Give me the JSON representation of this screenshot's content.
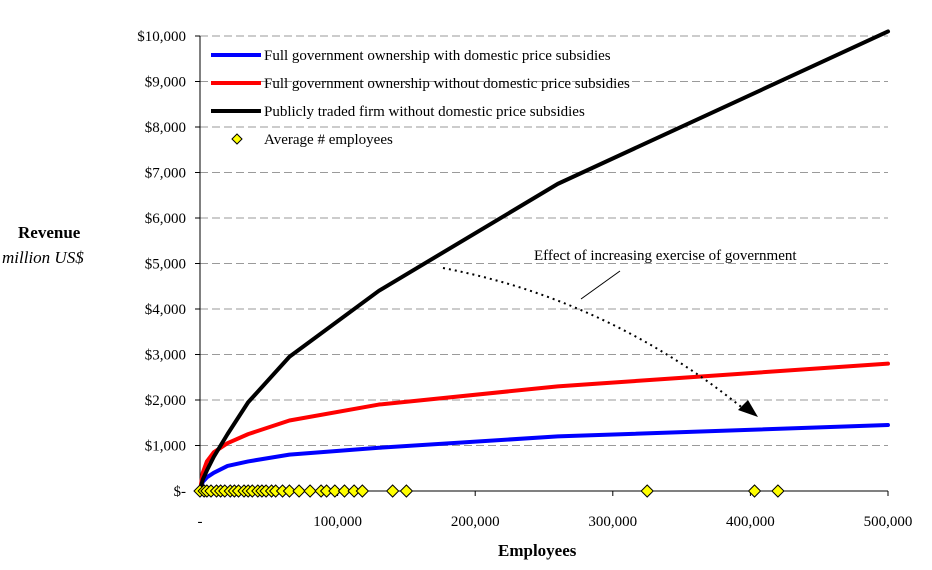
{
  "chart_data": {
    "type": "line",
    "title": "",
    "ylabel": "Revenue",
    "ylabel_unit": "million US$",
    "xlabel": "Employees",
    "xlim": [
      0,
      500000
    ],
    "ylim": [
      0,
      10000
    ],
    "grid": true,
    "legend_position": "top-left",
    "x_ticks": [
      "-",
      "100,000",
      "200,000",
      "300,000",
      "400,000",
      "500,000"
    ],
    "y_ticks": [
      "$-",
      "$1,000",
      "$2,000",
      "$3,000",
      "$4,000",
      "$5,000",
      "$6,000",
      "$7,000",
      "$8,000",
      "$9,000",
      "$10,000"
    ],
    "series": [
      {
        "name": "Full government ownership with domestic price subsidies",
        "color": "#0000ff",
        "x": [
          0,
          2000,
          5000,
          10000,
          20000,
          35000,
          65000,
          130000,
          260000,
          500000
        ],
        "y": [
          0,
          200,
          300,
          400,
          550,
          650,
          800,
          950,
          1200,
          1450
        ]
      },
      {
        "name": "Full government ownership without domestic price subsidies",
        "color": "#ff0000",
        "x": [
          0,
          2000,
          5000,
          10000,
          20000,
          35000,
          65000,
          130000,
          260000,
          500000
        ],
        "y": [
          0,
          400,
          650,
          850,
          1050,
          1250,
          1550,
          1900,
          2300,
          2800
        ]
      },
      {
        "name": "Publicly traded firm without domestic price subsidies",
        "color": "#000000",
        "x": [
          0,
          2000,
          5000,
          10000,
          20000,
          35000,
          65000,
          130000,
          260000,
          500000
        ],
        "y": [
          0,
          250,
          450,
          750,
          1250,
          1950,
          2950,
          4400,
          6750,
          10100
        ]
      },
      {
        "name": "Average # employees",
        "color": "#ffff00",
        "marker": "diamond",
        "x": [
          0,
          3000,
          5000,
          8000,
          12000,
          15000,
          18000,
          22000,
          25000,
          28000,
          32000,
          35000,
          38000,
          42000,
          45000,
          48000,
          52000,
          55000,
          60000,
          65000,
          72000,
          80000,
          88000,
          92000,
          98000,
          105000,
          112000,
          118000,
          140000,
          150000,
          325000,
          403000,
          420000
        ],
        "y": [
          0,
          0,
          0,
          0,
          0,
          0,
          0,
          0,
          0,
          0,
          0,
          0,
          0,
          0,
          0,
          0,
          0,
          0,
          0,
          0,
          0,
          0,
          0,
          0,
          0,
          0,
          0,
          0,
          0,
          0,
          0,
          0,
          0
        ]
      }
    ],
    "annotations": [
      {
        "text": "Effect of increasing exercise of government"
      }
    ]
  }
}
